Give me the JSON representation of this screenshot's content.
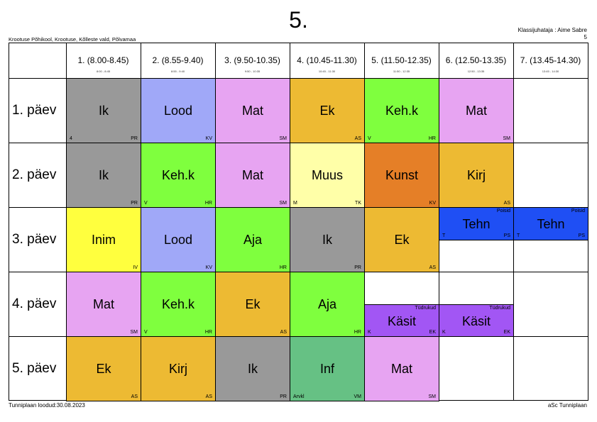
{
  "header": {
    "title": "5.",
    "school": "Krootuse Põhikool, Krootuse, Kõlleste vald, Põlvamaa",
    "teacher": "Klassijuhataja : Aime Sabre",
    "teacher_sub": "5"
  },
  "footer": {
    "left": "Tunniplaan loodud:30.08.2023",
    "right": "aSc Tunniplaan"
  },
  "periods": [
    {
      "label": "1. (8.00-8.45)",
      "time": "8:00 - 8:45"
    },
    {
      "label": "2. (8.55-9.40)",
      "time": "8:55 - 9:40"
    },
    {
      "label": "3. (9.50-10.35)",
      "time": "9:50 - 10:35"
    },
    {
      "label": "4. (10.45-11.30)",
      "time": "10:45 - 11:30"
    },
    {
      "label": "5. (11.50-12.35)",
      "time": "11:50 - 12:35"
    },
    {
      "label": "6. (12.50-13.35)",
      "time": "12:50 - 13:35"
    },
    {
      "label": "7. (13.45-14.30)",
      "time": "13:45 - 14:30"
    }
  ],
  "days": [
    "1. päev",
    "2. päev",
    "3. päev",
    "4. päev",
    "5. päev"
  ],
  "lessons": [
    {
      "day": 0,
      "period": 0,
      "half": "full",
      "subject": "Ik",
      "left": "4",
      "right": "PR",
      "group": "",
      "color": "#999999"
    },
    {
      "day": 0,
      "period": 1,
      "half": "full",
      "subject": "Lood",
      "left": "",
      "right": "KV",
      "group": "",
      "color": "#A0A8F8"
    },
    {
      "day": 0,
      "period": 2,
      "half": "full",
      "subject": "Mat",
      "left": "",
      "right": "SM",
      "group": "",
      "color": "#E7A4F2"
    },
    {
      "day": 0,
      "period": 3,
      "half": "full",
      "subject": "Ek",
      "left": "",
      "right": "AS",
      "group": "",
      "color": "#EDBA33"
    },
    {
      "day": 0,
      "period": 4,
      "half": "full",
      "subject": "Keh.k",
      "left": "V",
      "right": "HR",
      "group": "",
      "color": "#7FFF3E"
    },
    {
      "day": 0,
      "period": 5,
      "half": "full",
      "subject": "Mat",
      "left": "",
      "right": "SM",
      "group": "",
      "color": "#E7A4F2"
    },
    {
      "day": 1,
      "period": 0,
      "half": "full",
      "subject": "Ik",
      "left": "",
      "right": "PR",
      "group": "",
      "color": "#999999"
    },
    {
      "day": 1,
      "period": 1,
      "half": "full",
      "subject": "Keh.k",
      "left": "V",
      "right": "HR",
      "group": "",
      "color": "#7FFF3E"
    },
    {
      "day": 1,
      "period": 2,
      "half": "full",
      "subject": "Mat",
      "left": "",
      "right": "SM",
      "group": "",
      "color": "#E7A4F2"
    },
    {
      "day": 1,
      "period": 3,
      "half": "full",
      "subject": "Muus",
      "left": "M",
      "right": "TK",
      "group": "",
      "color": "#FFFFA8"
    },
    {
      "day": 1,
      "period": 4,
      "half": "full",
      "subject": "Kunst",
      "left": "",
      "right": "KV",
      "group": "",
      "color": "#E57F27"
    },
    {
      "day": 1,
      "period": 5,
      "half": "full",
      "subject": "Kirj",
      "left": "",
      "right": "AS",
      "group": "",
      "color": "#EDBA33"
    },
    {
      "day": 2,
      "period": 0,
      "half": "full",
      "subject": "Inim",
      "left": "",
      "right": "IV",
      "group": "",
      "color": "#FFFF3E"
    },
    {
      "day": 2,
      "period": 1,
      "half": "full",
      "subject": "Lood",
      "left": "",
      "right": "KV",
      "group": "",
      "color": "#A0A8F8"
    },
    {
      "day": 2,
      "period": 2,
      "half": "full",
      "subject": "Aja",
      "left": "",
      "right": "HR",
      "group": "",
      "color": "#7FFF3E"
    },
    {
      "day": 2,
      "period": 3,
      "half": "full",
      "subject": "Ik",
      "left": "",
      "right": "PR",
      "group": "",
      "color": "#999999"
    },
    {
      "day": 2,
      "period": 4,
      "half": "full",
      "subject": "Ek",
      "left": "",
      "right": "AS",
      "group": "",
      "color": "#EDBA33"
    },
    {
      "day": 2,
      "period": 5,
      "half": "top",
      "subject": "Tehn",
      "left": "T",
      "right": "PS",
      "group": "Poisid",
      "color": "#1F4FF4"
    },
    {
      "day": 2,
      "period": 6,
      "half": "top",
      "subject": "Tehn",
      "left": "T",
      "right": "PS",
      "group": "Poisid",
      "color": "#1F4FF4"
    },
    {
      "day": 3,
      "period": 0,
      "half": "full",
      "subject": "Mat",
      "left": "",
      "right": "SM",
      "group": "",
      "color": "#E7A4F2"
    },
    {
      "day": 3,
      "period": 1,
      "half": "full",
      "subject": "Keh.k",
      "left": "V",
      "right": "HR",
      "group": "",
      "color": "#7FFF3E"
    },
    {
      "day": 3,
      "period": 2,
      "half": "full",
      "subject": "Ek",
      "left": "",
      "right": "AS",
      "group": "",
      "color": "#EDBA33"
    },
    {
      "day": 3,
      "period": 3,
      "half": "full",
      "subject": "Aja",
      "left": "",
      "right": "HR",
      "group": "",
      "color": "#7FFF3E"
    },
    {
      "day": 3,
      "period": 4,
      "half": "bottom",
      "subject": "Käsit",
      "left": "K",
      "right": "EK",
      "group": "Tüdrukud",
      "color": "#A256F4"
    },
    {
      "day": 3,
      "period": 5,
      "half": "bottom",
      "subject": "Käsit",
      "left": "K",
      "right": "EK",
      "group": "Tüdrukud",
      "color": "#A256F4"
    },
    {
      "day": 4,
      "period": 0,
      "half": "full",
      "subject": "Ek",
      "left": "",
      "right": "AS",
      "group": "",
      "color": "#EDBA33"
    },
    {
      "day": 4,
      "period": 1,
      "half": "full",
      "subject": "Kirj",
      "left": "",
      "right": "AS",
      "group": "",
      "color": "#EDBA33"
    },
    {
      "day": 4,
      "period": 2,
      "half": "full",
      "subject": "Ik",
      "left": "",
      "right": "PR",
      "group": "",
      "color": "#999999"
    },
    {
      "day": 4,
      "period": 3,
      "half": "full",
      "subject": "Inf",
      "left": "Arvkl",
      "right": "VM",
      "group": "",
      "color": "#66C184"
    },
    {
      "day": 4,
      "period": 4,
      "half": "full",
      "subject": "Mat",
      "left": "",
      "right": "SM",
      "group": "",
      "color": "#E7A4F2"
    }
  ]
}
